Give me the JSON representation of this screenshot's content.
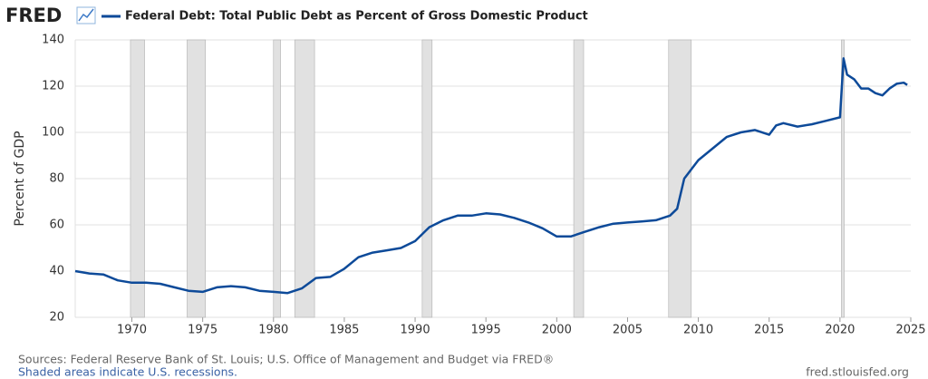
{
  "chart_data": {
    "type": "line",
    "logo": "FRED",
    "ylabel": "Percent of GDP",
    "source": "Sources: Federal Reserve Bank of St. Louis; U.S. Office of Management and Budget via FRED®",
    "note": "Shaded areas indicate U.S. recessions.",
    "site": "fred.stlouisfed.org",
    "x": [
      1966,
      1967,
      1968,
      1969,
      1970,
      1971,
      1972,
      1973,
      1974,
      1975,
      1976,
      1977,
      1978,
      1979,
      1980,
      1981,
      1982,
      1983,
      1984,
      1985,
      1986,
      1987,
      1988,
      1989,
      1990,
      1991,
      1992,
      1993,
      1994,
      1995,
      1996,
      1997,
      1998,
      1999,
      2000,
      2001,
      2002,
      2003,
      2004,
      2005,
      2006,
      2007,
      2008,
      2008.5,
      2009,
      2010,
      2011,
      2012,
      2013,
      2014,
      2015,
      2015.5,
      2016,
      2017,
      2018,
      2019,
      2020,
      2020.25,
      2020.5,
      2021,
      2021.5,
      2022,
      2022.5,
      2023,
      2023.5,
      2024,
      2024.5,
      2024.75
    ],
    "series": [
      {
        "name": "Federal Debt: Total Public Debt as Percent of Gross Domestic Product",
        "color": "#0d4a99",
        "values": [
          40,
          39,
          38.5,
          36,
          35,
          35,
          34.5,
          33,
          31.5,
          31,
          33,
          33.5,
          33,
          31.5,
          31,
          30.5,
          32.5,
          37,
          37.5,
          41,
          46,
          48,
          49,
          50,
          53,
          59,
          62,
          64,
          64,
          65,
          64.5,
          63,
          61,
          58.5,
          55,
          55,
          57,
          59,
          60.5,
          61,
          61.5,
          62,
          64,
          67,
          80,
          88,
          93,
          98,
          100,
          101,
          99,
          103,
          104,
          102.5,
          103.5,
          105,
          106.5,
          132,
          125,
          123,
          119,
          119,
          117,
          116,
          119,
          121,
          121.5,
          120.5
        ]
      }
    ],
    "recessions": [
      [
        1969.9,
        1970.9
      ],
      [
        1973.9,
        1975.2
      ],
      [
        1980.0,
        1980.5
      ],
      [
        1981.5,
        1982.9
      ],
      [
        1990.5,
        1991.2
      ],
      [
        2001.2,
        2001.9
      ],
      [
        2007.9,
        2009.5
      ],
      [
        2020.1,
        2020.3
      ]
    ],
    "xlim": [
      1966,
      2025
    ],
    "xticks": [
      1970,
      1975,
      1980,
      1985,
      1990,
      1995,
      2000,
      2005,
      2010,
      2015,
      2020,
      2025
    ],
    "ylim": [
      20,
      140
    ],
    "yticks": [
      20,
      40,
      60,
      80,
      100,
      120,
      140
    ],
    "grid": true
  }
}
